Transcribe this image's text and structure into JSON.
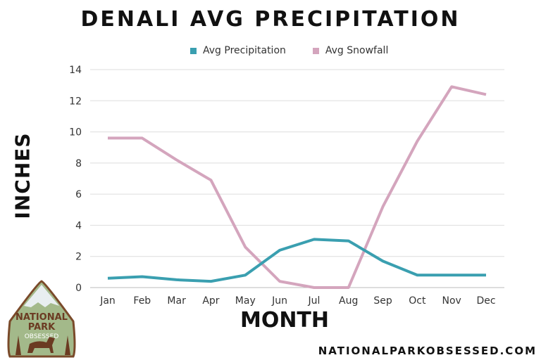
{
  "chart_data": {
    "type": "line",
    "title": "DENALI AVG PRECIPITATION",
    "xlabel": "MONTH",
    "ylabel": "INCHES",
    "categories": [
      "Jan",
      "Feb",
      "Mar",
      "Apr",
      "May",
      "Jun",
      "Jul",
      "Aug",
      "Sep",
      "Oct",
      "Nov",
      "Dec"
    ],
    "ylim": [
      0,
      14
    ],
    "yticks": [
      0,
      2,
      4,
      6,
      8,
      10,
      12,
      14
    ],
    "grid": true,
    "legend_position": "top",
    "series": [
      {
        "name": "Avg Precipitation",
        "color": "#3a9fb0",
        "values": [
          0.6,
          0.7,
          0.5,
          0.4,
          0.8,
          2.4,
          3.1,
          3.0,
          1.7,
          0.8,
          0.8,
          0.8
        ]
      },
      {
        "name": "Avg Snowfall",
        "color": "#d4a5bd",
        "values": [
          9.6,
          9.6,
          8.2,
          6.9,
          2.6,
          0.4,
          0.0,
          0.0,
          5.2,
          9.4,
          12.9,
          12.4
        ]
      }
    ]
  },
  "logo": {
    "text": "NATIONAL PARK OBSESSED"
  },
  "footer": {
    "site": "NATIONALPARKOBSESSED.COM"
  }
}
